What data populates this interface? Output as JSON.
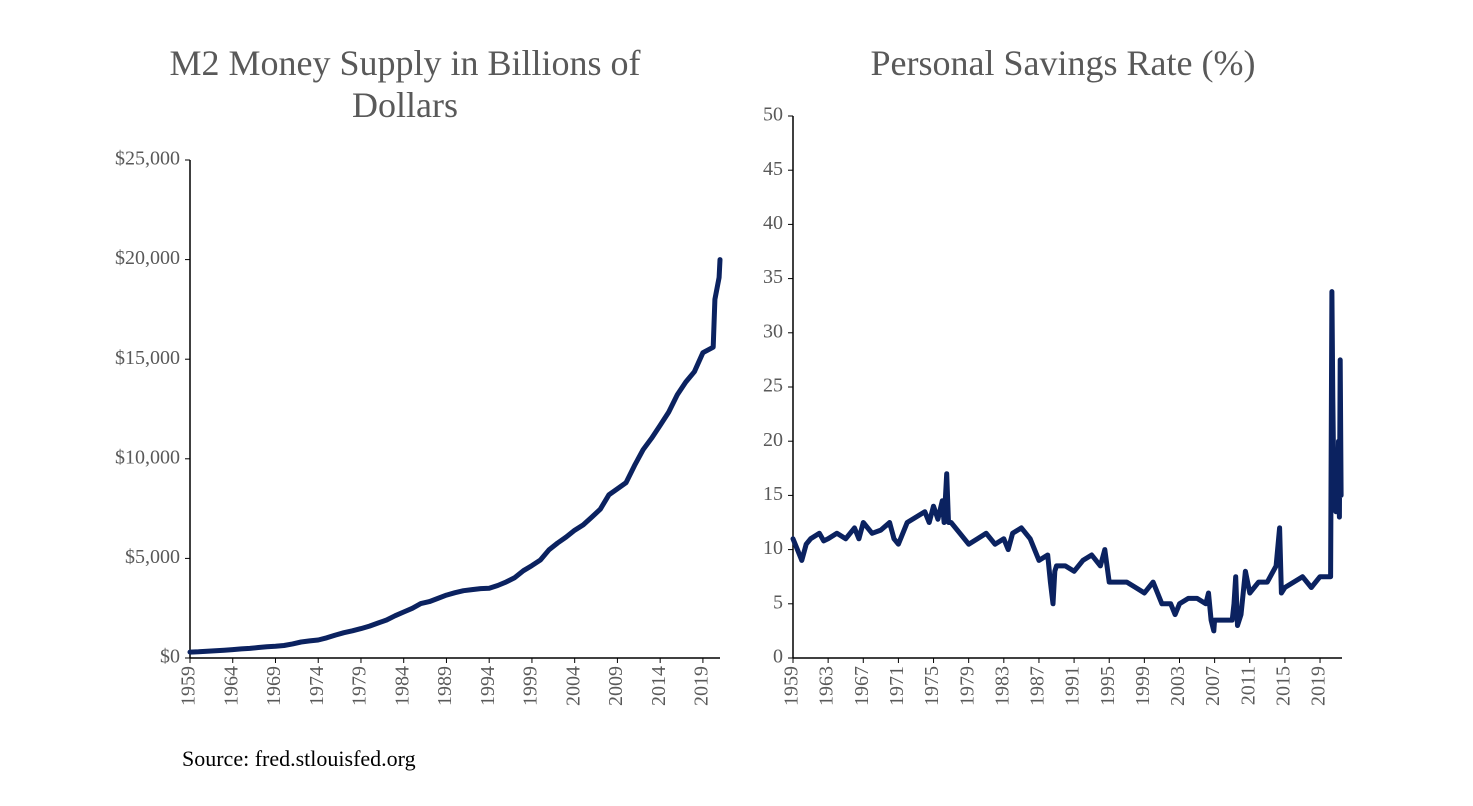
{
  "chart_data": [
    {
      "type": "line",
      "title": "M2 Money Supply in Billions of Dollars",
      "color": "#0b2260",
      "x": [
        1959,
        1960,
        1961,
        1962,
        1963,
        1964,
        1965,
        1966,
        1967,
        1968,
        1969,
        1970,
        1971,
        1972,
        1973,
        1974,
        1975,
        1976,
        1977,
        1978,
        1979,
        1980,
        1981,
        1982,
        1983,
        1984,
        1985,
        1986,
        1987,
        1988,
        1989,
        1990,
        1991,
        1992,
        1993,
        1994,
        1995,
        1996,
        1997,
        1998,
        1999,
        2000,
        2001,
        2002,
        2003,
        2004,
        2005,
        2006,
        2007,
        2008,
        2009,
        2010,
        2011,
        2012,
        2013,
        2014,
        2015,
        2016,
        2017,
        2018,
        2019,
        2020.2,
        2020.4,
        2020.9,
        2021
      ],
      "values": [
        297,
        312,
        335,
        362,
        393,
        424,
        459,
        480,
        525,
        567,
        588,
        627,
        710,
        802,
        856,
        902,
        1016,
        1152,
        1270,
        1366,
        1474,
        1600,
        1756,
        1906,
        2124,
        2307,
        2494,
        2732,
        2831,
        2994,
        3159,
        3279,
        3380,
        3432,
        3484,
        3499,
        3642,
        3820,
        4035,
        4381,
        4639,
        4926,
        5433,
        5772,
        6067,
        6418,
        6681,
        7071,
        7471,
        8192,
        8496,
        8801,
        9660,
        10459,
        11035,
        11684,
        12346,
        13215,
        13857,
        14374,
        15327,
        15600,
        18000,
        19100,
        20000
      ],
      "xlim": [
        1959,
        2021
      ],
      "ylim": [
        0,
        25000
      ],
      "xticks": [
        1959,
        1964,
        1969,
        1974,
        1979,
        1984,
        1989,
        1994,
        1999,
        2004,
        2009,
        2014,
        2019
      ],
      "yticks": [
        {
          "value": 0,
          "label": "$0"
        },
        {
          "value": 5000,
          "label": "$5,000"
        },
        {
          "value": 10000,
          "label": "$10,000"
        },
        {
          "value": 15000,
          "label": "$15,000"
        },
        {
          "value": 20000,
          "label": "$20,000"
        },
        {
          "value": 25000,
          "label": "$25,000"
        }
      ]
    },
    {
      "type": "line",
      "title": "Personal Savings Rate (%)",
      "color": "#0b2260",
      "x": [
        1959,
        1959.5,
        1960,
        1960.5,
        1961,
        1962,
        1962.5,
        1963,
        1964,
        1965,
        1966,
        1966.5,
        1967,
        1968,
        1969,
        1970,
        1970.5,
        1971,
        1972,
        1973,
        1974,
        1974.5,
        1975,
        1975.5,
        1976,
        1976.2,
        1976.5,
        1976.7,
        1977,
        1978,
        1979,
        1980,
        1981,
        1982,
        1983,
        1983.5,
        1984,
        1985,
        1986,
        1987,
        1988,
        1988.3,
        1988.6,
        1988.8,
        1989,
        1990,
        1991,
        1992,
        1993,
        1994,
        1994.5,
        1995,
        1996,
        1997,
        1998,
        1999,
        2000,
        2001,
        2002,
        2002.5,
        2003,
        2004,
        2005,
        2006,
        2006.3,
        2006.6,
        2006.9,
        2007,
        2008,
        2009,
        2009.2,
        2009.4,
        2009.6,
        2010,
        2010.5,
        2011,
        2012,
        2013,
        2014,
        2014.4,
        2014.6,
        2015,
        2016,
        2017,
        2018,
        2019,
        2020,
        2020.2,
        2020.35,
        2020.45,
        2020.6,
        2020.8,
        2021,
        2021.1,
        2021.2,
        2021.3,
        2021.4
      ],
      "values": [
        11,
        10,
        9,
        10.5,
        11,
        11.5,
        10.8,
        11,
        11.5,
        11,
        12,
        11,
        12.5,
        11.5,
        11.8,
        12.5,
        11,
        10.5,
        12.5,
        13,
        13.5,
        12.5,
        14,
        12.8,
        14.5,
        12.5,
        17,
        12.5,
        12.5,
        11.5,
        10.5,
        11,
        11.5,
        10.5,
        11,
        10,
        11.5,
        12,
        11,
        9,
        9.5,
        7,
        5,
        8,
        8.5,
        8.5,
        8,
        9,
        9.5,
        8.5,
        10,
        7,
        7,
        7,
        6.5,
        6,
        7,
        5,
        5,
        4,
        5,
        5.5,
        5.5,
        5,
        6,
        3.5,
        2.5,
        3.5,
        3.5,
        3.5,
        5,
        7.5,
        3,
        4,
        8,
        6,
        7,
        7,
        8.5,
        12,
        6,
        6.5,
        7,
        7.5,
        6.5,
        7.5,
        7.5,
        7.5,
        33.8,
        24,
        14,
        13.5,
        14,
        20,
        13,
        27.5,
        15
      ],
      "xlim": [
        1959,
        2021.5
      ],
      "ylim": [
        0,
        50
      ],
      "xticks": [
        1959,
        1963,
        1967,
        1971,
        1975,
        1979,
        1983,
        1987,
        1991,
        1995,
        1999,
        2003,
        2007,
        2011,
        2015,
        2019
      ],
      "yticks": [
        0,
        5,
        10,
        15,
        20,
        25,
        30,
        35,
        40,
        45,
        50
      ]
    }
  ],
  "source": "Source: fred.stlouisfed.org"
}
